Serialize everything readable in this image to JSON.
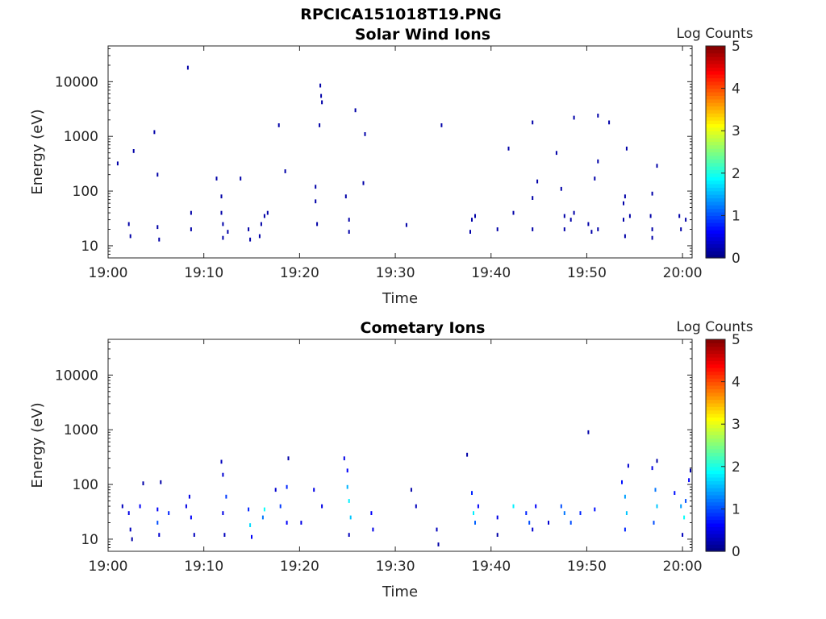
{
  "figure": {
    "title": "RPCICA151018T19.PNG"
  },
  "chart_data": [
    {
      "type": "heatmap",
      "title": "Solar Wind Ions",
      "xlabel": "Time",
      "ylabel": "Energy (eV)",
      "yscale": "log",
      "ylim": [
        6,
        45000
      ],
      "xlim": [
        "19:00",
        "20:01"
      ],
      "xticks": [
        "19:00",
        "19:10",
        "19:20",
        "19:30",
        "19:40",
        "19:50",
        "20:00"
      ],
      "yticks": [
        "10",
        "100",
        "1000",
        "10000"
      ],
      "colorbar": {
        "label": "Log Counts",
        "ticks": [
          "0",
          "1",
          "2",
          "3",
          "4",
          "5"
        ],
        "range": [
          0,
          5
        ],
        "colormap": "jet"
      },
      "cells": [
        [
          "19:01:00",
          320,
          0.2
        ],
        [
          "19:02:40",
          540,
          0.2
        ],
        [
          "19:04:50",
          1200,
          0.2
        ],
        [
          "19:05:10",
          200,
          0.2
        ],
        [
          "19:08:20",
          18000,
          0.2
        ],
        [
          "19:11:20",
          170,
          0.2
        ],
        [
          "19:13:50",
          170,
          0.2
        ],
        [
          "19:17:50",
          1600,
          0.2
        ],
        [
          "19:18:30",
          230,
          0.2
        ],
        [
          "19:22:10",
          8500,
          0.2
        ],
        [
          "19:22:15",
          5500,
          0.2
        ],
        [
          "19:22:20",
          4200,
          0.2
        ],
        [
          "19:22:05",
          1600,
          0.2
        ],
        [
          "19:21:40",
          120,
          0.2
        ],
        [
          "19:25:50",
          3000,
          0.2
        ],
        [
          "19:26:50",
          1100,
          0.2
        ],
        [
          "19:26:40",
          140,
          0.2
        ],
        [
          "19:34:50",
          1600,
          0.2
        ],
        [
          "19:41:50",
          600,
          0.2
        ],
        [
          "19:44:20",
          1800,
          0.2
        ],
        [
          "19:44:50",
          150,
          0.2
        ],
        [
          "19:44:20",
          75,
          0.2
        ],
        [
          "19:46:50",
          500,
          0.2
        ],
        [
          "19:47:20",
          110,
          0.2
        ],
        [
          "19:48:40",
          2200,
          0.2
        ],
        [
          "19:50:50",
          170,
          0.2
        ],
        [
          "19:51:10",
          2400,
          0.2
        ],
        [
          "19:51:10",
          350,
          0.2
        ],
        [
          "19:52:20",
          1800,
          0.2
        ],
        [
          "19:54:10",
          600,
          0.2
        ],
        [
          "19:54:00",
          80,
          0.2
        ],
        [
          "19:56:50",
          90,
          0.2
        ],
        [
          "19:57:20",
          290,
          0.2
        ],
        [
          "19:02:10",
          25,
          0.2
        ],
        [
          "19:02:20",
          15,
          0.2
        ],
        [
          "19:05:10",
          22,
          0.2
        ],
        [
          "19:05:20",
          13,
          0.2
        ],
        [
          "19:08:40",
          40,
          0.2
        ],
        [
          "19:08:40",
          20,
          0.2
        ],
        [
          "19:11:50",
          80,
          0.2
        ],
        [
          "19:11:50",
          40,
          0.2
        ],
        [
          "19:12:00",
          25,
          0.2
        ],
        [
          "19:12:00",
          14,
          0.2
        ],
        [
          "19:12:30",
          18,
          0.2
        ],
        [
          "19:14:40",
          20,
          0.2
        ],
        [
          "19:14:50",
          13,
          0.2
        ],
        [
          "19:16:20",
          35,
          0.2
        ],
        [
          "19:16:40",
          40,
          0.2
        ],
        [
          "19:16:00",
          25,
          0.2
        ],
        [
          "19:15:50",
          15,
          0.2
        ],
        [
          "19:21:40",
          65,
          0.2
        ],
        [
          "19:21:50",
          25,
          0.2
        ],
        [
          "19:24:50",
          80,
          0.2
        ],
        [
          "19:25:10",
          30,
          0.2
        ],
        [
          "19:25:10",
          18,
          0.2
        ],
        [
          "19:31:10",
          24,
          0.2
        ],
        [
          "19:38:00",
          30,
          0.2
        ],
        [
          "19:38:20",
          35,
          0.2
        ],
        [
          "19:37:50",
          18,
          0.2
        ],
        [
          "19:40:40",
          20,
          0.2
        ],
        [
          "19:42:20",
          40,
          0.2
        ],
        [
          "19:44:20",
          20,
          0.2
        ],
        [
          "19:47:40",
          35,
          0.2
        ],
        [
          "19:47:40",
          20,
          0.2
        ],
        [
          "19:48:20",
          30,
          0.2
        ],
        [
          "19:48:40",
          40,
          0.2
        ],
        [
          "19:50:10",
          25,
          0.2
        ],
        [
          "19:50:30",
          18,
          0.2
        ],
        [
          "19:51:10",
          20,
          0.2
        ],
        [
          "19:53:50",
          60,
          0.2
        ],
        [
          "19:53:50",
          30,
          0.2
        ],
        [
          "19:54:00",
          15,
          0.2
        ],
        [
          "19:54:30",
          35,
          0.2
        ],
        [
          "19:56:40",
          35,
          0.2
        ],
        [
          "19:56:50",
          20,
          0.2
        ],
        [
          "19:56:50",
          14,
          0.2
        ],
        [
          "19:59:40",
          35,
          0.2
        ],
        [
          "19:59:50",
          20,
          0.2
        ],
        [
          "20:00:20",
          30,
          0.2
        ]
      ]
    },
    {
      "type": "heatmap",
      "title": "Cometary Ions",
      "xlabel": "Time",
      "ylabel": "Energy (eV)",
      "yscale": "log",
      "ylim": [
        6,
        45000
      ],
      "xlim": [
        "19:00",
        "20:01"
      ],
      "xticks": [
        "19:00",
        "19:10",
        "19:20",
        "19:30",
        "19:40",
        "19:50",
        "20:00"
      ],
      "yticks": [
        "10",
        "100",
        "1000",
        "10000"
      ],
      "colorbar": {
        "label": "Log Counts",
        "ticks": [
          "0",
          "1",
          "2",
          "3",
          "4",
          "5"
        ],
        "range": [
          0,
          5
        ],
        "colormap": "jet"
      },
      "cells": [
        [
          "19:01:30",
          40,
          0.3
        ],
        [
          "19:02:10",
          30,
          0.5
        ],
        [
          "19:02:20",
          15,
          0.3
        ],
        [
          "19:02:30",
          10,
          0.2
        ],
        [
          "19:03:40",
          105,
          0.2
        ],
        [
          "19:03:20",
          40,
          0.6
        ],
        [
          "19:05:10",
          35,
          0.6
        ],
        [
          "19:05:10",
          20,
          1.0
        ],
        [
          "19:05:20",
          12,
          0.4
        ],
        [
          "19:05:30",
          110,
          0.2
        ],
        [
          "19:06:20",
          30,
          0.8
        ],
        [
          "19:08:10",
          40,
          0.5
        ],
        [
          "19:08:30",
          60,
          0.5
        ],
        [
          "19:08:40",
          25,
          0.6
        ],
        [
          "19:09:00",
          12,
          0.3
        ],
        [
          "19:11:50",
          260,
          0.3
        ],
        [
          "19:12:00",
          150,
          0.4
        ],
        [
          "19:12:20",
          60,
          0.9
        ],
        [
          "19:12:00",
          30,
          0.5
        ],
        [
          "19:12:10",
          12,
          0.3
        ],
        [
          "19:14:40",
          35,
          0.8
        ],
        [
          "19:14:50",
          18,
          1.7
        ],
        [
          "19:15:00",
          11,
          0.6
        ],
        [
          "19:16:20",
          35,
          1.9
        ],
        [
          "19:16:10",
          25,
          1.2
        ],
        [
          "19:17:30",
          80,
          0.4
        ],
        [
          "19:18:00",
          40,
          0.9
        ],
        [
          "19:18:40",
          90,
          0.8
        ],
        [
          "19:18:40",
          20,
          0.6
        ],
        [
          "19:18:50",
          300,
          0.2
        ],
        [
          "19:20:10",
          20,
          0.5
        ],
        [
          "19:21:30",
          80,
          0.5
        ],
        [
          "19:22:20",
          40,
          0.5
        ],
        [
          "19:24:40",
          300,
          0.5
        ],
        [
          "19:25:00",
          180,
          0.6
        ],
        [
          "19:25:00",
          90,
          1.5
        ],
        [
          "19:25:10",
          50,
          1.8
        ],
        [
          "19:25:20",
          25,
          1.6
        ],
        [
          "19:25:10",
          12,
          0.3
        ],
        [
          "19:27:30",
          30,
          0.6
        ],
        [
          "19:27:40",
          15,
          0.5
        ],
        [
          "19:31:40",
          80,
          0.2
        ],
        [
          "19:32:10",
          40,
          0.3
        ],
        [
          "19:34:20",
          15,
          0.3
        ],
        [
          "19:34:30",
          8,
          0.2
        ],
        [
          "19:37:30",
          350,
          0.2
        ],
        [
          "19:38:00",
          70,
          0.8
        ],
        [
          "19:38:10",
          30,
          1.8
        ],
        [
          "19:38:20",
          20,
          1.1
        ],
        [
          "19:38:40",
          40,
          0.6
        ],
        [
          "19:40:40",
          25,
          0.5
        ],
        [
          "19:40:40",
          12,
          0.2
        ],
        [
          "19:42:20",
          40,
          1.8
        ],
        [
          "19:43:40",
          30,
          0.8
        ],
        [
          "19:44:00",
          20,
          1.0
        ],
        [
          "19:44:20",
          15,
          0.4
        ],
        [
          "19:44:40",
          40,
          0.6
        ],
        [
          "19:46:00",
          20,
          0.4
        ],
        [
          "19:47:20",
          40,
          1.0
        ],
        [
          "19:47:40",
          30,
          1.2
        ],
        [
          "19:48:20",
          20,
          1.0
        ],
        [
          "19:49:20",
          30,
          0.8
        ],
        [
          "19:50:10",
          900,
          0.2
        ],
        [
          "19:50:50",
          35,
          0.7
        ],
        [
          "19:53:40",
          110,
          0.7
        ],
        [
          "19:54:00",
          60,
          1.4
        ],
        [
          "19:54:10",
          30,
          1.6
        ],
        [
          "19:54:00",
          15,
          0.8
        ],
        [
          "19:54:20",
          220,
          0.4
        ],
        [
          "19:56:50",
          200,
          0.5
        ],
        [
          "19:57:10",
          80,
          1.2
        ],
        [
          "19:57:20",
          40,
          1.6
        ],
        [
          "19:57:00",
          20,
          1.0
        ],
        [
          "19:57:20",
          270,
          0.2
        ],
        [
          "19:59:10",
          70,
          0.7
        ],
        [
          "19:59:50",
          40,
          1.4
        ],
        [
          "20:00:10",
          25,
          1.9
        ],
        [
          "20:00:20",
          50,
          1.0
        ],
        [
          "20:00:40",
          120,
          0.6
        ],
        [
          "20:00:00",
          12,
          0.3
        ],
        [
          "20:00:50",
          180,
          0.2
        ]
      ]
    }
  ]
}
